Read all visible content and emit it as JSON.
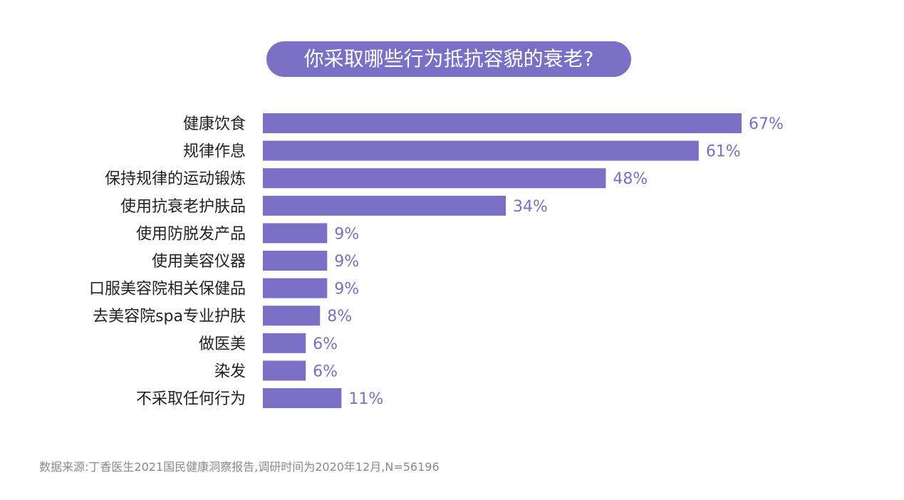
{
  "chart_data": {
    "type": "bar",
    "orientation": "horizontal",
    "title": "你采取哪些行为抵抗容貌的衰老?",
    "categories": [
      "健康饮食",
      "规律作息",
      "保持规律的运动锻炼",
      "使用抗衰老护肤品",
      "使用防脱发产品",
      "使用美容仪器",
      "口服美容院相关保健品",
      "去美容院spa专业护肤",
      "做医美",
      "染发",
      "不采取任何行为"
    ],
    "values": [
      67,
      61,
      48,
      34,
      9,
      9,
      9,
      8,
      6,
      6,
      11
    ],
    "value_labels": [
      "67%",
      "61%",
      "48%",
      "34%",
      "9%",
      "9%",
      "9%",
      "8%",
      "6%",
      "6%",
      "11%"
    ],
    "unit": "%",
    "xlim": [
      0,
      67
    ],
    "grid": false,
    "bar_color": "#7b6fc6"
  },
  "source_note": "数据来源:丁香医生2021国民健康洞察报告,调研时间为2020年12月,N=56196"
}
